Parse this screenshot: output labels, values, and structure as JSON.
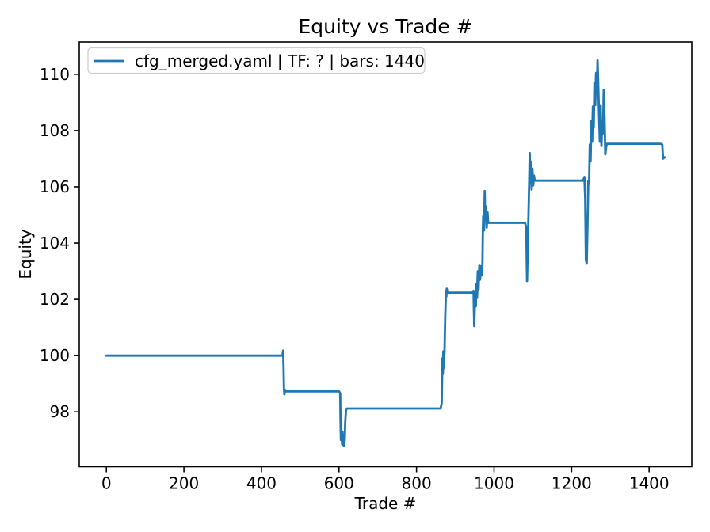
{
  "figure": {
    "title": "Equity vs Trade #",
    "xlabel": "Trade #",
    "ylabel": "Equity",
    "legend_label": "cfg_merged.yaml | TF: ? | bars: 1440",
    "background_color": "#ffffff",
    "spine_color": "#000000",
    "legend_border_color": "#cccccc"
  },
  "chart_data": {
    "type": "line",
    "title": "Equity vs Trade #",
    "xlabel": "Trade #",
    "ylabel": "Equity",
    "legend": [
      "cfg_merged.yaml | TF: ? | bars: 1440"
    ],
    "legend_position": "upper left",
    "grid": false,
    "xlim": [
      -70,
      1510
    ],
    "ylim": [
      96.05,
      111.15
    ],
    "xticks": [
      0,
      200,
      400,
      600,
      800,
      1000,
      1200,
      1400
    ],
    "yticks": [
      98,
      100,
      102,
      104,
      106,
      108,
      110
    ],
    "series": [
      {
        "name": "cfg_merged.yaml | TF: ? | bars: 1440",
        "color": "#1f77b4",
        "points": [
          [
            0,
            100.0
          ],
          [
            452,
            100.0
          ],
          [
            454,
            100.0
          ],
          [
            456,
            100.18
          ],
          [
            457,
            99.6
          ],
          [
            458,
            98.85
          ],
          [
            459,
            98.62
          ],
          [
            461,
            98.78
          ],
          [
            463,
            98.73
          ],
          [
            600,
            98.73
          ],
          [
            603,
            98.65
          ],
          [
            604,
            97.7
          ],
          [
            605,
            97.0
          ],
          [
            606,
            97.35
          ],
          [
            608,
            96.85
          ],
          [
            609,
            97.3
          ],
          [
            611,
            96.82
          ],
          [
            612,
            97.15
          ],
          [
            613,
            96.78
          ],
          [
            615,
            97.05
          ],
          [
            616,
            97.6
          ],
          [
            618,
            98.05
          ],
          [
            620,
            98.12
          ],
          [
            862,
            98.12
          ],
          [
            865,
            98.3
          ],
          [
            866,
            99.15
          ],
          [
            867,
            99.9
          ],
          [
            868,
            99.35
          ],
          [
            869,
            100.15
          ],
          [
            870,
            99.55
          ],
          [
            871,
            100.1
          ],
          [
            872,
            100.05
          ],
          [
            874,
            101.3
          ],
          [
            876,
            102.3
          ],
          [
            877,
            102.1
          ],
          [
            878,
            102.38
          ],
          [
            880,
            102.24
          ],
          [
            944,
            102.24
          ],
          [
            947,
            102.3
          ],
          [
            948,
            101.7
          ],
          [
            949,
            101.05
          ],
          [
            951,
            102.15
          ],
          [
            953,
            101.75
          ],
          [
            954,
            102.55
          ],
          [
            956,
            102.05
          ],
          [
            958,
            103.0
          ],
          [
            960,
            102.35
          ],
          [
            962,
            103.2
          ],
          [
            964,
            102.7
          ],
          [
            966,
            103.18
          ],
          [
            968,
            102.85
          ],
          [
            970,
            103.22
          ],
          [
            971,
            104.3
          ],
          [
            972,
            104.95
          ],
          [
            974,
            104.45
          ],
          [
            976,
            105.85
          ],
          [
            977,
            104.85
          ],
          [
            979,
            105.3
          ],
          [
            981,
            104.55
          ],
          [
            983,
            105.1
          ],
          [
            985,
            104.72
          ],
          [
            1080,
            104.72
          ],
          [
            1083,
            104.55
          ],
          [
            1085,
            102.65
          ],
          [
            1087,
            103.9
          ],
          [
            1089,
            105.1
          ],
          [
            1091,
            106.4
          ],
          [
            1092,
            107.2
          ],
          [
            1093,
            106.15
          ],
          [
            1095,
            106.9
          ],
          [
            1097,
            105.9
          ],
          [
            1099,
            106.65
          ],
          [
            1101,
            106.05
          ],
          [
            1103,
            106.4
          ],
          [
            1105,
            106.22
          ],
          [
            1230,
            106.22
          ],
          [
            1233,
            106.35
          ],
          [
            1235,
            105.6
          ],
          [
            1237,
            103.4
          ],
          [
            1239,
            103.27
          ],
          [
            1241,
            104.6
          ],
          [
            1243,
            106.2
          ],
          [
            1245,
            106.1
          ],
          [
            1247,
            107.5
          ],
          [
            1249,
            106.9
          ],
          [
            1251,
            108.35
          ],
          [
            1253,
            107.6
          ],
          [
            1255,
            108.85
          ],
          [
            1257,
            108.1
          ],
          [
            1259,
            109.7
          ],
          [
            1261,
            108.9
          ],
          [
            1263,
            110.05
          ],
          [
            1265,
            109.35
          ],
          [
            1267,
            110.5
          ],
          [
            1269,
            109.5
          ],
          [
            1271,
            108.45
          ],
          [
            1273,
            107.6
          ],
          [
            1275,
            108.9
          ],
          [
            1277,
            107.45
          ],
          [
            1279,
            108.3
          ],
          [
            1281,
            107.9
          ],
          [
            1283,
            109.45
          ],
          [
            1285,
            108.4
          ],
          [
            1287,
            107.15
          ],
          [
            1289,
            107.4
          ],
          [
            1291,
            107.53
          ],
          [
            1430,
            107.53
          ],
          [
            1434,
            107.5
          ],
          [
            1436,
            107.0
          ],
          [
            1440,
            107.05
          ]
        ]
      }
    ]
  }
}
